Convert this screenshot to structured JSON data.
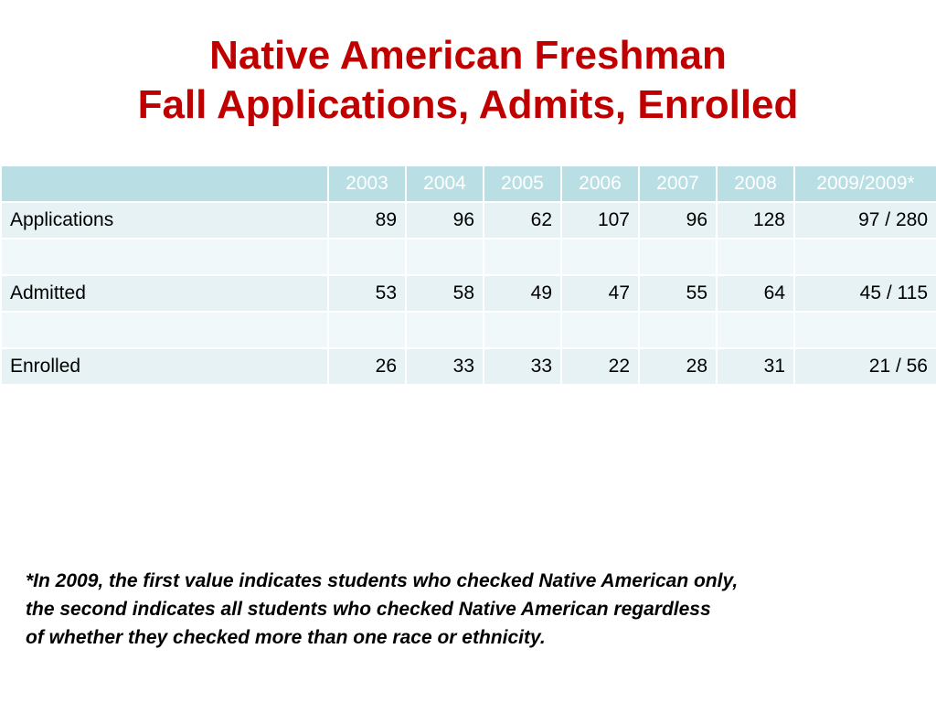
{
  "title": {
    "line1": "Native American Freshman",
    "line2": "Fall Applications, Admits, Enrolled"
  },
  "chart_data": {
    "type": "table",
    "columns": [
      "",
      "2003",
      "2004",
      "2005",
      "2006",
      "2007",
      "2008",
      "2009/2009*"
    ],
    "rows": [
      {
        "label": "Applications",
        "values": [
          "89",
          "96",
          "62",
          "107",
          "96",
          "128",
          "97 / 280"
        ]
      },
      {
        "label": "",
        "values": [
          "",
          "",
          "",
          "",
          "",
          "",
          ""
        ]
      },
      {
        "label": "Admitted",
        "values": [
          "53",
          "58",
          "49",
          "47",
          "55",
          "64",
          "45 / 115"
        ]
      },
      {
        "label": "",
        "values": [
          "",
          "",
          "",
          "",
          "",
          "",
          ""
        ]
      },
      {
        "label": "Enrolled",
        "values": [
          "26",
          "33",
          "33",
          "22",
          "28",
          "31",
          "21 / 56"
        ]
      }
    ]
  },
  "footnote": {
    "line1": "*In 2009, the first value indicates students who checked Native American only,",
    "line2": "the second indicates all students who checked Native American regardless",
    "line3": "of whether they checked more than one race or ethnicity."
  },
  "colors": {
    "title": "#c00000",
    "header_bg": "#b9dfe4",
    "row_bg": "#e6f2f4",
    "row_alt_bg": "#f1f8f9"
  }
}
